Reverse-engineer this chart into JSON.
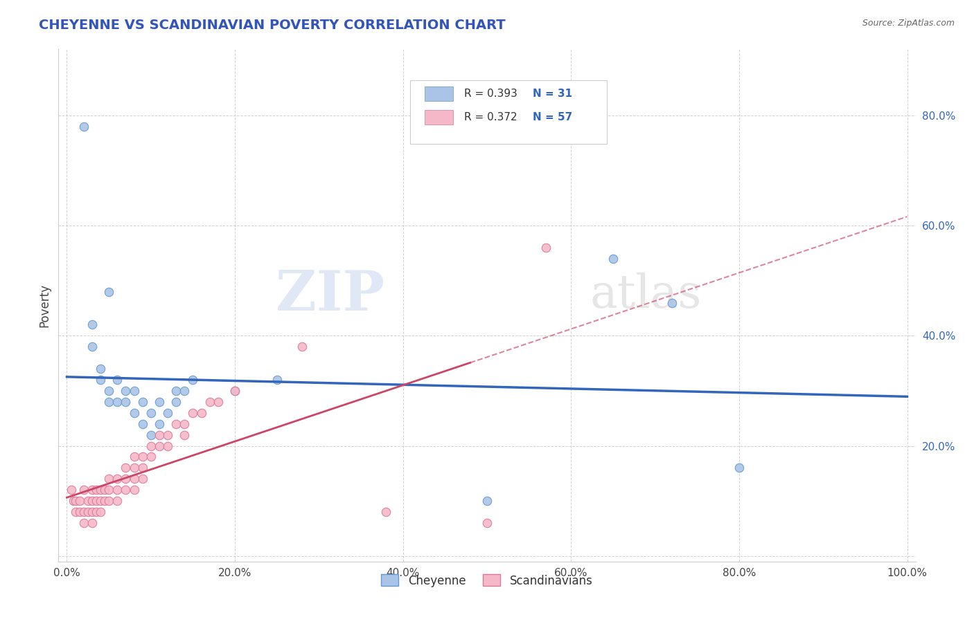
{
  "title": "CHEYENNE VS SCANDINAVIAN POVERTY CORRELATION CHART",
  "source": "Source: ZipAtlas.com",
  "ylabel": "Poverty",
  "title_color": "#3355bb",
  "cheyenne_color": "#aac4e8",
  "scandinavian_color": "#f5b8c8",
  "cheyenne_edge_color": "#6699cc",
  "scandinavian_edge_color": "#dd7799",
  "cheyenne_line_color": "#3366bb",
  "scandinavian_line_color": "#cc4466",
  "cheyenne_R": 0.393,
  "cheyenne_N": 31,
  "scandinavian_R": 0.372,
  "scandinavian_N": 57,
  "watermark_zip": "ZIP",
  "watermark_atlas": "atlas",
  "grid_color": "#cccccc",
  "cheyenne_points": [
    [
      0.02,
      0.78
    ],
    [
      0.05,
      0.48
    ],
    [
      0.03,
      0.42
    ],
    [
      0.03,
      0.38
    ],
    [
      0.04,
      0.34
    ],
    [
      0.04,
      0.32
    ],
    [
      0.05,
      0.3
    ],
    [
      0.05,
      0.28
    ],
    [
      0.06,
      0.32
    ],
    [
      0.06,
      0.28
    ],
    [
      0.07,
      0.3
    ],
    [
      0.07,
      0.28
    ],
    [
      0.08,
      0.3
    ],
    [
      0.08,
      0.26
    ],
    [
      0.09,
      0.28
    ],
    [
      0.09,
      0.24
    ],
    [
      0.1,
      0.26
    ],
    [
      0.1,
      0.22
    ],
    [
      0.11,
      0.28
    ],
    [
      0.11,
      0.24
    ],
    [
      0.12,
      0.26
    ],
    [
      0.13,
      0.3
    ],
    [
      0.13,
      0.28
    ],
    [
      0.14,
      0.3
    ],
    [
      0.15,
      0.32
    ],
    [
      0.2,
      0.3
    ],
    [
      0.25,
      0.32
    ],
    [
      0.5,
      0.1
    ],
    [
      0.65,
      0.54
    ],
    [
      0.72,
      0.46
    ],
    [
      0.8,
      0.16
    ]
  ],
  "scandinavian_points": [
    [
      0.005,
      0.12
    ],
    [
      0.008,
      0.1
    ],
    [
      0.01,
      0.1
    ],
    [
      0.01,
      0.08
    ],
    [
      0.015,
      0.1
    ],
    [
      0.015,
      0.08
    ],
    [
      0.02,
      0.12
    ],
    [
      0.02,
      0.08
    ],
    [
      0.02,
      0.06
    ],
    [
      0.025,
      0.1
    ],
    [
      0.025,
      0.08
    ],
    [
      0.03,
      0.12
    ],
    [
      0.03,
      0.1
    ],
    [
      0.03,
      0.08
    ],
    [
      0.03,
      0.06
    ],
    [
      0.035,
      0.12
    ],
    [
      0.035,
      0.1
    ],
    [
      0.035,
      0.08
    ],
    [
      0.04,
      0.12
    ],
    [
      0.04,
      0.1
    ],
    [
      0.04,
      0.08
    ],
    [
      0.045,
      0.12
    ],
    [
      0.045,
      0.1
    ],
    [
      0.05,
      0.14
    ],
    [
      0.05,
      0.12
    ],
    [
      0.05,
      0.1
    ],
    [
      0.06,
      0.14
    ],
    [
      0.06,
      0.12
    ],
    [
      0.06,
      0.1
    ],
    [
      0.07,
      0.16
    ],
    [
      0.07,
      0.14
    ],
    [
      0.07,
      0.12
    ],
    [
      0.08,
      0.18
    ],
    [
      0.08,
      0.16
    ],
    [
      0.08,
      0.14
    ],
    [
      0.08,
      0.12
    ],
    [
      0.09,
      0.18
    ],
    [
      0.09,
      0.16
    ],
    [
      0.09,
      0.14
    ],
    [
      0.1,
      0.2
    ],
    [
      0.1,
      0.18
    ],
    [
      0.11,
      0.22
    ],
    [
      0.11,
      0.2
    ],
    [
      0.12,
      0.22
    ],
    [
      0.12,
      0.2
    ],
    [
      0.13,
      0.24
    ],
    [
      0.14,
      0.24
    ],
    [
      0.14,
      0.22
    ],
    [
      0.15,
      0.26
    ],
    [
      0.16,
      0.26
    ],
    [
      0.17,
      0.28
    ],
    [
      0.18,
      0.28
    ],
    [
      0.2,
      0.3
    ],
    [
      0.28,
      0.38
    ],
    [
      0.38,
      0.08
    ],
    [
      0.5,
      0.06
    ],
    [
      0.57,
      0.56
    ]
  ]
}
